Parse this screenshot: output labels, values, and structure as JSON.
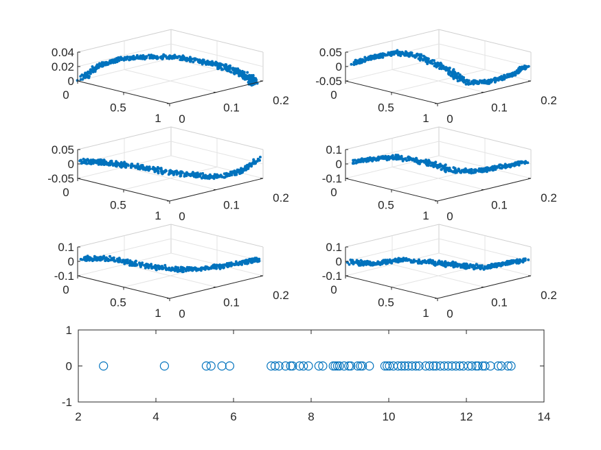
{
  "accent_color": "#0072BD",
  "chart_data": [
    {
      "type": "scatter",
      "projection": "3d",
      "panel": 1,
      "x_ticks": [
        "0",
        "0.5",
        "1"
      ],
      "y_ticks": [
        "0",
        "0.1",
        "0.2"
      ],
      "z_ticks": [
        "0",
        "0.02",
        "0.04"
      ],
      "xlim": [
        0,
        1
      ],
      "ylim": [
        0,
        0.2
      ],
      "zlim": [
        0,
        0.04
      ],
      "grid": true
    },
    {
      "type": "scatter",
      "projection": "3d",
      "panel": 2,
      "x_ticks": [
        "0",
        "0.5",
        "1"
      ],
      "y_ticks": [
        "0",
        "0.1",
        "0.2"
      ],
      "z_ticks": [
        "-0.05",
        "0",
        "0.05"
      ],
      "xlim": [
        0,
        1
      ],
      "ylim": [
        0,
        0.2
      ],
      "zlim": [
        -0.05,
        0.05
      ],
      "grid": true
    },
    {
      "type": "scatter",
      "projection": "3d",
      "panel": 3,
      "x_ticks": [
        "0",
        "0.5",
        "1"
      ],
      "y_ticks": [
        "0",
        "0.1",
        "0.2"
      ],
      "z_ticks": [
        "-0.05",
        "0",
        "0.05"
      ],
      "xlim": [
        0,
        1
      ],
      "ylim": [
        0,
        0.2
      ],
      "zlim": [
        -0.05,
        0.05
      ],
      "grid": true
    },
    {
      "type": "scatter",
      "projection": "3d",
      "panel": 4,
      "x_ticks": [
        "0",
        "0.5",
        "1"
      ],
      "y_ticks": [
        "0",
        "0.1",
        "0.2"
      ],
      "z_ticks": [
        "-0.1",
        "0",
        "0.1"
      ],
      "xlim": [
        0,
        1
      ],
      "ylim": [
        0,
        0.2
      ],
      "zlim": [
        -0.1,
        0.1
      ],
      "grid": true
    },
    {
      "type": "scatter",
      "projection": "3d",
      "panel": 5,
      "x_ticks": [
        "0",
        "0.5",
        "1"
      ],
      "y_ticks": [
        "0",
        "0.1",
        "0.2"
      ],
      "z_ticks": [
        "-0.1",
        "0",
        "0.1"
      ],
      "xlim": [
        0,
        1
      ],
      "ylim": [
        0,
        0.2
      ],
      "zlim": [
        -0.1,
        0.1
      ],
      "grid": true
    },
    {
      "type": "scatter",
      "projection": "3d",
      "panel": 6,
      "x_ticks": [
        "0",
        "0.5",
        "1"
      ],
      "y_ticks": [
        "0",
        "0.1",
        "0.2"
      ],
      "z_ticks": [
        "-0.1",
        "0",
        "0.1"
      ],
      "xlim": [
        0,
        1
      ],
      "ylim": [
        0,
        0.2
      ],
      "zlim": [
        -0.1,
        0.1
      ],
      "grid": true
    },
    {
      "type": "scatter",
      "panel": 7,
      "marker": "open-circle",
      "xlim": [
        2,
        14
      ],
      "ylim": [
        -1,
        1
      ],
      "x_ticks": [
        "2",
        "4",
        "6",
        "8",
        "10",
        "12",
        "14"
      ],
      "y_ticks": [
        "-1",
        "0",
        "1"
      ],
      "x": [
        2.65,
        4.22,
        5.3,
        5.42,
        5.7,
        5.9,
        6.97,
        7.07,
        7.17,
        7.34,
        7.47,
        7.52,
        7.7,
        7.8,
        7.93,
        8.2,
        8.3,
        8.57,
        8.62,
        8.68,
        8.73,
        8.85,
        8.97,
        9.02,
        9.2,
        9.27,
        9.32,
        9.5,
        9.9,
        9.96,
        10.02,
        10.12,
        10.24,
        10.33,
        10.41,
        10.5,
        10.6,
        10.7,
        10.78,
        10.95,
        11.05,
        11.15,
        11.22,
        11.33,
        11.43,
        11.53,
        11.63,
        11.73,
        11.83,
        11.92,
        12.05,
        12.14,
        12.25,
        12.3,
        12.42,
        12.48,
        12.62,
        12.82,
        12.9,
        13.07,
        13.15
      ],
      "y": [
        0,
        0,
        0,
        0,
        0,
        0,
        0,
        0,
        0,
        0,
        0,
        0,
        0,
        0,
        0,
        0,
        0,
        0,
        0,
        0,
        0,
        0,
        0,
        0,
        0,
        0,
        0,
        0,
        0,
        0,
        0,
        0,
        0,
        0,
        0,
        0,
        0,
        0,
        0,
        0,
        0,
        0,
        0,
        0,
        0,
        0,
        0,
        0,
        0,
        0,
        0,
        0,
        0,
        0,
        0,
        0,
        0,
        0,
        0,
        0,
        0
      ]
    }
  ]
}
